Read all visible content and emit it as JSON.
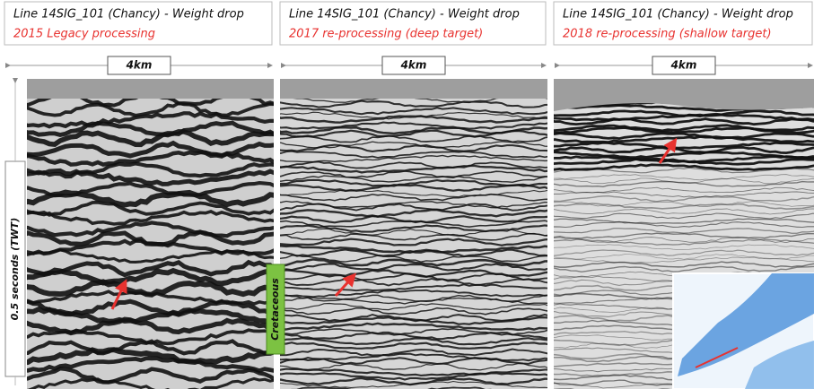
{
  "panels": [
    {
      "title": "Line 14SIG_101 (Chancy) - Weight drop",
      "subtitle": "2015 Legacy processing",
      "scale": "4km"
    },
    {
      "title": "Line 14SIG_101 (Chancy) - Weight drop",
      "subtitle": "2017 re-processing (deep target)",
      "scale": "4km"
    },
    {
      "title": "Line 14SIG_101 (Chancy) - Weight drop",
      "subtitle": "2018 re-processing (shallow target)",
      "scale": "4km"
    }
  ],
  "time_axis_label": "0.5 seconds (TWT)",
  "formation_label": "Cretaceous"
}
